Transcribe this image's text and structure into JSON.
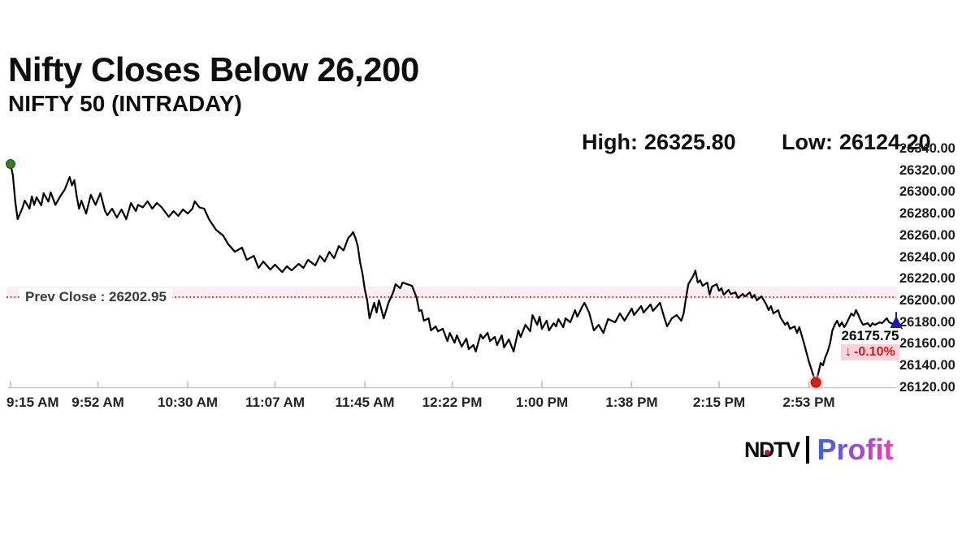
{
  "header": {
    "title": "Nifty Closes Below 26,200",
    "subtitle": "NIFTY 50 (INTRADAY)",
    "high_label": "High:",
    "high_value": "26325.80",
    "low_label": "Low:",
    "low_value": "26124.20"
  },
  "price_callout": {
    "price": "26175.75",
    "arrow": "↓",
    "change": "-0.10%"
  },
  "prev_close_label": "Prev Close : 26202.95",
  "logo": {
    "ndtv": "NDTV",
    "profit": "Profit"
  },
  "colors": {
    "line": "#000000",
    "prev_close_line": "#a04f30",
    "prev_close_band": "#fdeef4",
    "open_dot": "#2f7d21",
    "low_dot": "#cf2318",
    "close_marker": "#1a16b8",
    "axis": "#c8c8c8",
    "change_red": "#cf1d1d",
    "chip_pink": "#f9d3da"
  },
  "chart_data": {
    "type": "line",
    "title": "NIFTY 50 (INTRADAY)",
    "x_unit": "minutes since 9:15 AM",
    "x_range_minutes": [
      0,
      375
    ],
    "y_range": [
      26120,
      26340
    ],
    "grid": false,
    "legend": false,
    "open": 26325.8,
    "high": 26325.8,
    "low": 26124.2,
    "close": 26175.75,
    "prev_close": 26202.95,
    "change_pct": "-0.10%",
    "y_ticks": [
      "26340.00",
      "26320.00",
      "26300.00",
      "26280.00",
      "26260.00",
      "26240.00",
      "26220.00",
      "26200.00",
      "26180.00",
      "26160.00",
      "26140.00",
      "26120.00"
    ],
    "x_ticks": [
      {
        "label": "9:15 AM",
        "t": 0
      },
      {
        "label": "9:52 AM",
        "t": 37
      },
      {
        "label": "10:30 AM",
        "t": 75
      },
      {
        "label": "11:07 AM",
        "t": 112
      },
      {
        "label": "11:45 AM",
        "t": 150
      },
      {
        "label": "12:22 PM",
        "t": 187
      },
      {
        "label": "1:00 PM",
        "t": 225
      },
      {
        "label": "1:38 PM",
        "t": 263
      },
      {
        "label": "2:15 PM",
        "t": 300
      },
      {
        "label": "2:53 PM",
        "t": 338
      }
    ],
    "series": [
      [
        0,
        26325.8
      ],
      [
        1,
        26315
      ],
      [
        2,
        26291
      ],
      [
        3,
        26274.8
      ],
      [
        5,
        26285
      ],
      [
        6,
        26292
      ],
      [
        8,
        26284.6
      ],
      [
        9,
        26295.8
      ],
      [
        10,
        26288
      ],
      [
        11,
        26295
      ],
      [
        13,
        26287.6
      ],
      [
        14,
        26298.8
      ],
      [
        16,
        26291
      ],
      [
        17,
        26299.6
      ],
      [
        19,
        26288
      ],
      [
        21,
        26295.8
      ],
      [
        23,
        26302.5
      ],
      [
        25,
        26313.8
      ],
      [
        26,
        26306
      ],
      [
        27,
        26310.8
      ],
      [
        28,
        26296
      ],
      [
        29,
        26284.6
      ],
      [
        30,
        26292
      ],
      [
        32,
        26280
      ],
      [
        34,
        26297.3
      ],
      [
        36,
        26288
      ],
      [
        38,
        26298.8
      ],
      [
        40,
        26282.3
      ],
      [
        41,
        26278.6
      ],
      [
        43,
        26284.6
      ],
      [
        45,
        26276.3
      ],
      [
        47,
        26283.8
      ],
      [
        49,
        26274.8
      ],
      [
        51,
        26289.8
      ],
      [
        53,
        26282.3
      ],
      [
        54,
        26288
      ],
      [
        56,
        26285.8
      ],
      [
        58,
        26291.3
      ],
      [
        60,
        26284.6
      ],
      [
        62,
        26289.8
      ],
      [
        64,
        26285.8
      ],
      [
        66,
        26280
      ],
      [
        67,
        26277
      ],
      [
        69,
        26282.3
      ],
      [
        71,
        26277.8
      ],
      [
        73,
        26283.8
      ],
      [
        75,
        26280
      ],
      [
        77,
        26284.6
      ],
      [
        78,
        26291.3
      ],
      [
        80,
        26285.8
      ],
      [
        82,
        26284.6
      ],
      [
        84,
        26274.8
      ],
      [
        87,
        26265
      ],
      [
        90,
        26259.8
      ],
      [
        92,
        26252.3
      ],
      [
        95,
        26244.8
      ],
      [
        98,
        26248.6
      ],
      [
        100,
        26237.3
      ],
      [
        103,
        26241
      ],
      [
        105,
        26229.8
      ],
      [
        107,
        26235.8
      ],
      [
        110,
        26228.4
      ],
      [
        112,
        26232.9
      ],
      [
        115,
        26226.1
      ],
      [
        117,
        26231.4
      ],
      [
        119,
        26227.6
      ],
      [
        122,
        26233.6
      ],
      [
        124,
        26229.8
      ],
      [
        126,
        26237.3
      ],
      [
        129,
        26232.1
      ],
      [
        131,
        26241
      ],
      [
        133,
        26235.8
      ],
      [
        135,
        26244.8
      ],
      [
        137,
        26238.8
      ],
      [
        139,
        26250
      ],
      [
        141,
        26246
      ],
      [
        143,
        26257.7
      ],
      [
        144,
        26259.8
      ],
      [
        145,
        26262.9
      ],
      [
        146,
        26257.7
      ],
      [
        147,
        26250
      ],
      [
        148,
        26235
      ],
      [
        149,
        26224.7
      ],
      [
        150,
        26210
      ],
      [
        151,
        26200
      ],
      [
        152,
        26183.4
      ],
      [
        154,
        26197.7
      ],
      [
        155,
        26188.7
      ],
      [
        156,
        26200
      ],
      [
        158,
        26183.4
      ],
      [
        160,
        26197.7
      ],
      [
        162,
        26207.3
      ],
      [
        163,
        26214.8
      ],
      [
        165,
        26211.1
      ],
      [
        166,
        26216.3
      ],
      [
        168,
        26214.8
      ],
      [
        170,
        26213.3
      ],
      [
        172,
        26202.2
      ],
      [
        173,
        26190.2
      ],
      [
        174,
        26190.9
      ],
      [
        175,
        26181.2
      ],
      [
        177,
        26183.4
      ],
      [
        178,
        26172.2
      ],
      [
        180,
        26175.9
      ],
      [
        181,
        26171.4
      ],
      [
        183,
        26173.7
      ],
      [
        185,
        26162.4
      ],
      [
        186,
        26169.9
      ],
      [
        188,
        26160.9
      ],
      [
        189,
        26167.7
      ],
      [
        191,
        26157.2
      ],
      [
        193,
        26164.7
      ],
      [
        194,
        26155
      ],
      [
        196,
        26158.7
      ],
      [
        197,
        26152.7
      ],
      [
        199,
        26168.4
      ],
      [
        200,
        26164.7
      ],
      [
        202,
        26169.9
      ],
      [
        203,
        26162.4
      ],
      [
        205,
        26166.2
      ],
      [
        206,
        26158.7
      ],
      [
        208,
        26167.7
      ],
      [
        209,
        26156.5
      ],
      [
        211,
        26164
      ],
      [
        213,
        26152.7
      ],
      [
        215,
        26172.2
      ],
      [
        216,
        26166.2
      ],
      [
        218,
        26177.4
      ],
      [
        220,
        26171.4
      ],
      [
        221,
        26186.4
      ],
      [
        223,
        26177.4
      ],
      [
        224,
        26184.9
      ],
      [
        225,
        26173.7
      ],
      [
        227,
        26181.2
      ],
      [
        228,
        26172.2
      ],
      [
        230,
        26178.9
      ],
      [
        231,
        26175.9
      ],
      [
        232,
        26182.7
      ],
      [
        234,
        26175.2
      ],
      [
        235,
        26183.4
      ],
      [
        237,
        26179.7
      ],
      [
        239,
        26190.9
      ],
      [
        240,
        26184.9
      ],
      [
        242,
        26193.9
      ],
      [
        243,
        26197.7
      ],
      [
        245,
        26188.7
      ],
      [
        247,
        26172.2
      ],
      [
        249,
        26177.4
      ],
      [
        251,
        26169.9
      ],
      [
        253,
        26182.7
      ],
      [
        256,
        26179.7
      ],
      [
        258,
        26187.9
      ],
      [
        260,
        26181.2
      ],
      [
        263,
        26192.4
      ],
      [
        264,
        26186.4
      ],
      [
        267,
        26194.7
      ],
      [
        268,
        26188.7
      ],
      [
        271,
        26196.2
      ],
      [
        272,
        26190.2
      ],
      [
        275,
        26197.7
      ],
      [
        277,
        26182.7
      ],
      [
        278,
        26175.9
      ],
      [
        280,
        26183.4
      ],
      [
        282,
        26186.4
      ],
      [
        284,
        26181.2
      ],
      [
        285,
        26187.9
      ],
      [
        286,
        26202.2
      ],
      [
        287,
        26214.8
      ],
      [
        289,
        26222.2
      ],
      [
        290,
        26227.4
      ],
      [
        291,
        26216.3
      ],
      [
        292,
        26218.5
      ],
      [
        293,
        26213.3
      ],
      [
        295,
        26216.3
      ],
      [
        296,
        26205.1
      ],
      [
        297,
        26212.6
      ],
      [
        299,
        26214.8
      ],
      [
        300,
        26208.8
      ],
      [
        301,
        26211.1
      ],
      [
        302,
        26205.1
      ],
      [
        304,
        26209.6
      ],
      [
        305,
        26205.8
      ],
      [
        307,
        26207.3
      ],
      [
        308,
        26202.2
      ],
      [
        310,
        26205.8
      ],
      [
        311,
        26203.6
      ],
      [
        313,
        26207.3
      ],
      [
        314,
        26202.2
      ],
      [
        315,
        26205.1
      ],
      [
        316,
        26200
      ],
      [
        318,
        26203.6
      ],
      [
        320,
        26196.2
      ],
      [
        321,
        26190.9
      ],
      [
        322,
        26194.7
      ],
      [
        323,
        26187.9
      ],
      [
        325,
        26190.9
      ],
      [
        326,
        26184.2
      ],
      [
        328,
        26177.4
      ],
      [
        329,
        26179.7
      ],
      [
        330,
        26173.7
      ],
      [
        332,
        26175.9
      ],
      [
        333,
        26169.9
      ],
      [
        334,
        26175.2
      ],
      [
        335,
        26167.7
      ],
      [
        336,
        26160.2
      ],
      [
        337,
        26152
      ],
      [
        338,
        26143.7
      ],
      [
        339,
        26137
      ],
      [
        340,
        26130
      ],
      [
        341,
        26124.2
      ],
      [
        342,
        26132.5
      ],
      [
        343,
        26142.2
      ],
      [
        344,
        26140
      ],
      [
        345,
        26147.5
      ],
      [
        346,
        26152.7
      ],
      [
        347,
        26160.2
      ],
      [
        348,
        26172.2
      ],
      [
        349,
        26177.4
      ],
      [
        350,
        26181.2
      ],
      [
        351,
        26175.9
      ],
      [
        352,
        26179.7
      ],
      [
        353,
        26175.2
      ],
      [
        354,
        26178.9
      ],
      [
        355,
        26183.4
      ],
      [
        356,
        26187.9
      ],
      [
        357,
        26185.7
      ],
      [
        358,
        26190.9
      ],
      [
        359,
        26186.4
      ],
      [
        360,
        26181.2
      ],
      [
        361,
        26177.4
      ],
      [
        363,
        26178.9
      ],
      [
        364,
        26175.9
      ],
      [
        365,
        26178.9
      ],
      [
        366,
        26177.4
      ],
      [
        368,
        26179.7
      ],
      [
        369,
        26178.9
      ],
      [
        370,
        26181.2
      ],
      [
        371,
        26183.4
      ],
      [
        372,
        26179.7
      ],
      [
        373,
        26178.9
      ],
      [
        374,
        26177
      ],
      [
        375,
        26175.75
      ]
    ],
    "markers": {
      "open": {
        "t": 0,
        "price": 26325.8,
        "color": "#2f7d21"
      },
      "low": {
        "t": 341,
        "price": 26124.2,
        "color": "#cf2318"
      },
      "close": {
        "t": 375,
        "price": 26175.75,
        "color": "#1a16b8"
      }
    }
  }
}
